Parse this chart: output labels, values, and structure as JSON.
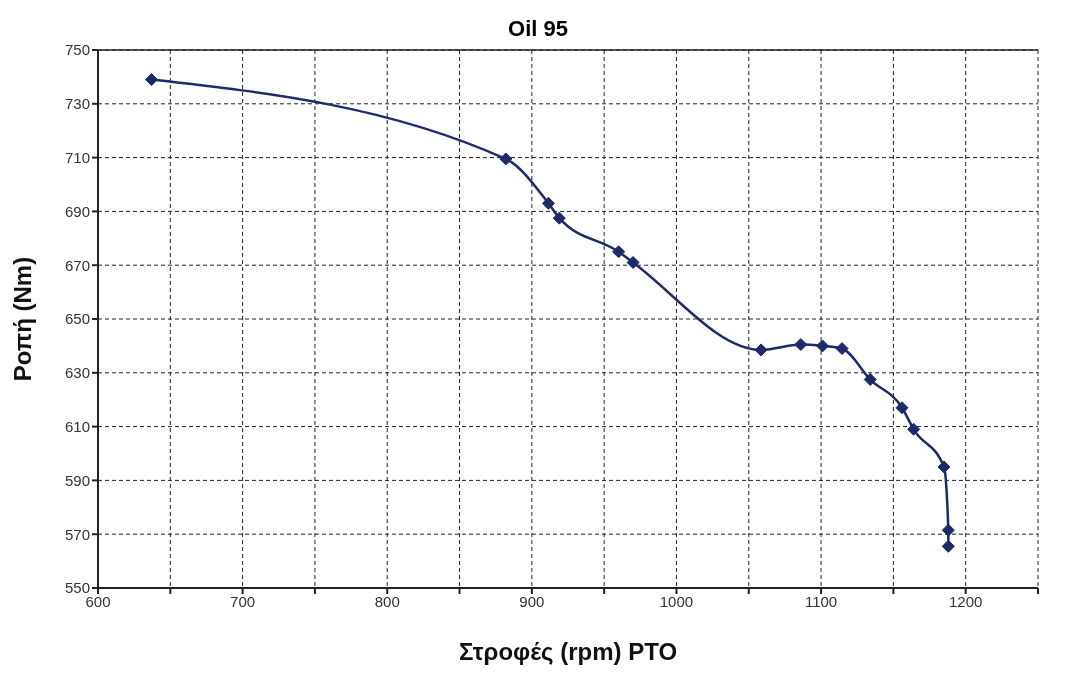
{
  "chart_data": {
    "type": "line",
    "title": "Oil 95",
    "xlabel": "Στροφές (rpm) PTO",
    "ylabel": "Ροπή (Nm)",
    "x": [
      637,
      882,
      911.5,
      919,
      960,
      970,
      1058.5,
      1086,
      1101,
      1114.5,
      1134,
      1156,
      1164,
      1185,
      1188,
      1188
    ],
    "series": [
      {
        "color": "#1f2a6b",
        "values": [
          739,
          709.5,
          693,
          687.5,
          675,
          671,
          638.5,
          640.5,
          640,
          639,
          627.5,
          617,
          609,
          595,
          571.5,
          565.5
        ]
      }
    ],
    "xlim": [
      600,
      1250
    ],
    "xticks": [
      600,
      {
        "value": 650,
        "label": null
      },
      700,
      {
        "value": 750,
        "label": null
      },
      800,
      {
        "value": 850,
        "label": null
      },
      900,
      {
        "value": 950,
        "label": null
      },
      1000,
      {
        "value": 1050,
        "label": null
      },
      1100,
      {
        "value": 1150,
        "label": null
      },
      1200,
      {
        "value": 1250,
        "label": null
      }
    ],
    "ylim": [
      550,
      750
    ],
    "yticks": [
      550,
      570,
      590,
      610,
      630,
      650,
      670,
      690,
      710,
      730,
      750
    ],
    "grid": true,
    "marker": "diamond",
    "line_style": "solid"
  }
}
